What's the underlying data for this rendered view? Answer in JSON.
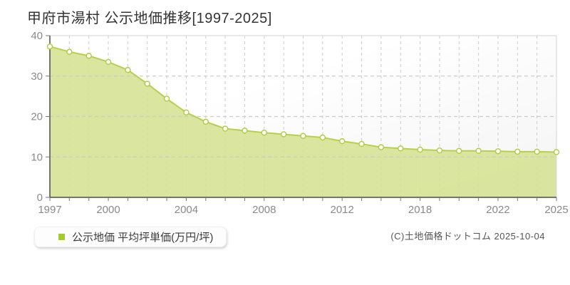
{
  "page": {
    "title": "甲府市湯村 公示地価推移[1997-2025]"
  },
  "chart_data": {
    "type": "area",
    "title": "甲府市湯村 公示地価推移[1997-2025]",
    "series_name": "公示地価",
    "legend_label": "公示地価 平均坪単価(万円/坪)",
    "legend_position": "bottom-left",
    "ylabel": "平均坪単価(万円/坪)",
    "ylim": [
      0,
      40
    ],
    "yticks": [
      0,
      10,
      20,
      30,
      40
    ],
    "x_range": "1997-2025",
    "x_tick_labels": [
      "1997",
      "2000",
      "2004",
      "2008",
      "2012",
      "2018",
      "2022",
      "2025"
    ],
    "x_tick_indices": [
      0,
      3,
      7,
      11,
      15,
      19,
      23,
      26
    ],
    "num_points": 27,
    "values": [
      37.3,
      36.0,
      35.0,
      33.5,
      31.5,
      28.1,
      24.4,
      21.0,
      18.7,
      17.0,
      16.5,
      16.0,
      15.6,
      15.2,
      14.8,
      13.9,
      13.2,
      12.4,
      12.1,
      11.8,
      11.6,
      11.5,
      11.5,
      11.4,
      11.3,
      11.3,
      11.2
    ],
    "grid": true,
    "marker": "circle",
    "colors": {
      "line": "#b6d149",
      "fill": "#d6e395",
      "marker_fill": "#ffffff",
      "marker_stroke": "#afcc3e",
      "legend_square": "#a5cd27",
      "grid": "#cccccc",
      "border": "#dcdcdc",
      "axis": "#4d4d4d",
      "tick": "#777777",
      "tick_label": "#8a8a8a"
    }
  },
  "footer": {
    "copyright": "(C)土地価格ドットコム 2025-10-04"
  }
}
